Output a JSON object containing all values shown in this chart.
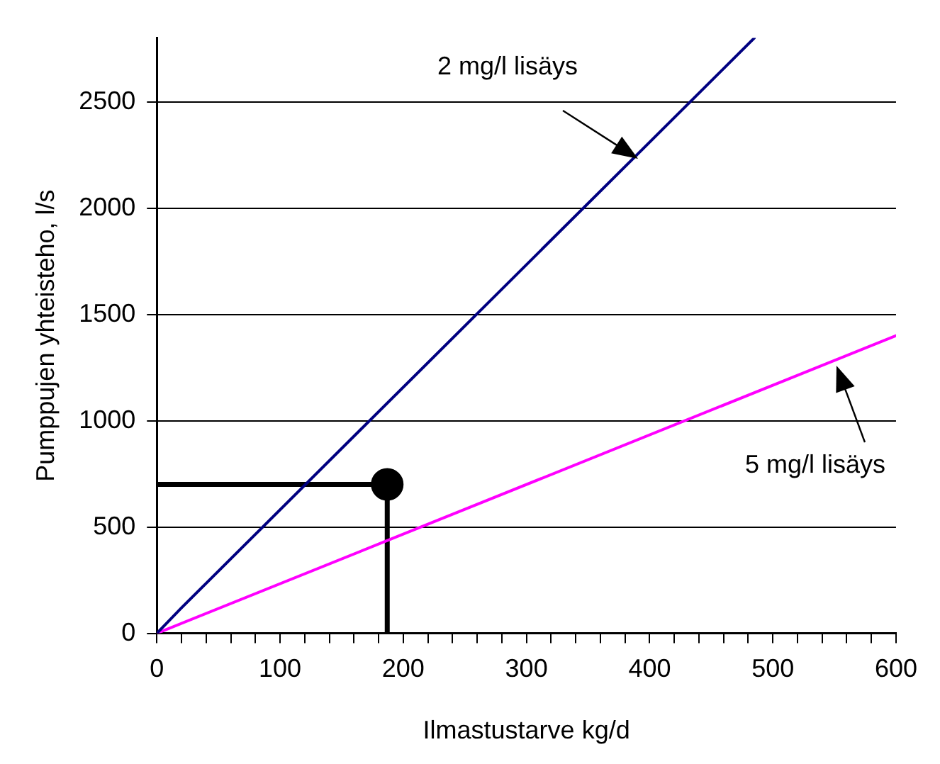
{
  "chart_data": {
    "type": "line",
    "xlabel": "Ilmastustarve kg/d",
    "ylabel": "Pumppujen yhteisteho, l/s",
    "xlim": [
      0,
      600
    ],
    "ylim": [
      0,
      2800
    ],
    "xticks": [
      0,
      {
        "value": 20,
        "label": null
      },
      {
        "value": 40,
        "label": null
      },
      {
        "value": 60,
        "label": null
      },
      {
        "value": 80,
        "label": null
      },
      100,
      {
        "value": 120,
        "label": null
      },
      {
        "value": 140,
        "label": null
      },
      {
        "value": 160,
        "label": null
      },
      {
        "value": 180,
        "label": null
      },
      200,
      {
        "value": 220,
        "label": null
      },
      {
        "value": 240,
        "label": null
      },
      {
        "value": 260,
        "label": null
      },
      {
        "value": 280,
        "label": null
      },
      300,
      {
        "value": 320,
        "label": null
      },
      {
        "value": 340,
        "label": null
      },
      {
        "value": 360,
        "label": null
      },
      {
        "value": 380,
        "label": null
      },
      400,
      {
        "value": 420,
        "label": null
      },
      {
        "value": 440,
        "label": null
      },
      {
        "value": 460,
        "label": null
      },
      {
        "value": 480,
        "label": null
      },
      500,
      {
        "value": 520,
        "label": null
      },
      {
        "value": 540,
        "label": null
      },
      {
        "value": 560,
        "label": null
      },
      {
        "value": 580,
        "label": null
      },
      600
    ],
    "yticks": [
      0,
      500,
      1000,
      1500,
      2000,
      2500
    ],
    "grid": "y",
    "legend": false,
    "marker": "none",
    "line_style": "solid",
    "series": [
      {
        "color": "#000080",
        "x": [
          0,
          20,
          485
        ],
        "values": [
          0,
          120,
          2800
        ]
      },
      {
        "color": "#ff00ff",
        "x": [
          0,
          600
        ],
        "values": [
          0,
          1400
        ]
      },
      {
        "color": "#000000",
        "x": [
          0,
          187,
          187
        ],
        "values": [
          700,
          700,
          0
        ]
      },
      {
        "type": "scatter",
        "color": "#000000",
        "marker": "circle",
        "x": [
          187
        ],
        "values": [
          700
        ]
      }
    ],
    "annotations": [
      "2 mg/l lisäys",
      "5 mg/l lisäys"
    ]
  }
}
